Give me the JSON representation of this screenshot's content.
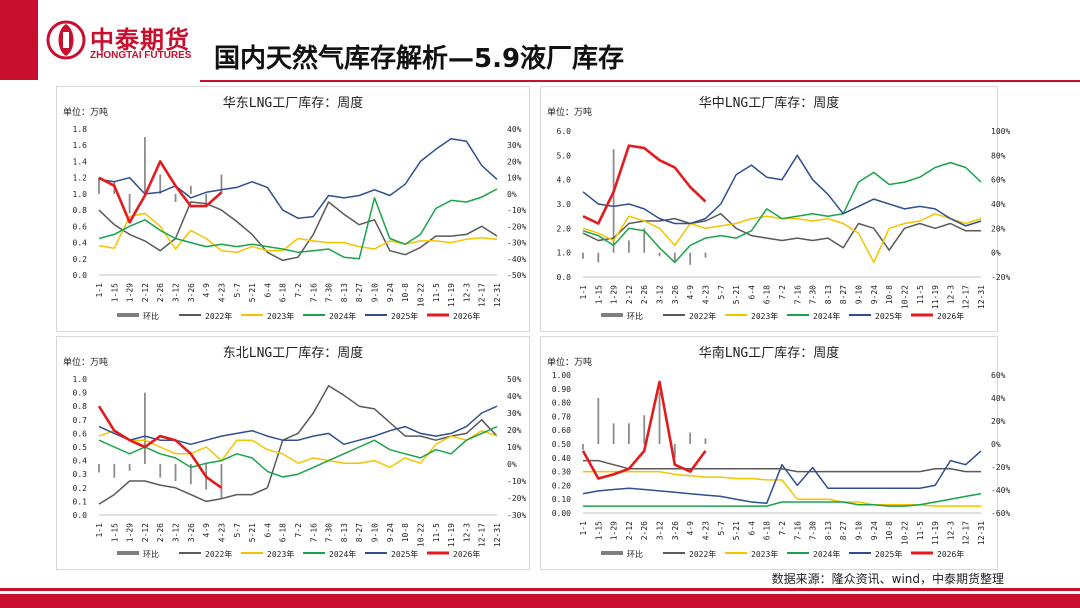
{
  "header": {
    "brand_cn": "中泰期货",
    "brand_en": "ZHONGTAI FUTURES",
    "title": "国内天然气库存解析—5.9液厂库存"
  },
  "footer": {
    "source": "数据来源：隆众资讯、wind，中泰期货整理"
  },
  "colors": {
    "brand": "#c8102e"
  },
  "x_labels": [
    "1-1",
    "1-15",
    "1-29",
    "2-12",
    "2-26",
    "3-12",
    "3-26",
    "4-9",
    "4-23",
    "5-7",
    "5-21",
    "6-4",
    "6-18",
    "7-2",
    "7-16",
    "7-30",
    "8-13",
    "8-27",
    "9-10",
    "9-24",
    "10-8",
    "10-22",
    "11-5",
    "11-19",
    "12-3",
    "12-17",
    "12-31"
  ],
  "legend": [
    {
      "name": "环比",
      "color": "#7f7f7f",
      "kind": "bar"
    },
    {
      "name": "2022年",
      "color": "#595959",
      "kind": "line"
    },
    {
      "name": "2023年",
      "color": "#f5c400",
      "kind": "line"
    },
    {
      "name": "2024年",
      "color": "#1aa34a",
      "kind": "line"
    },
    {
      "name": "2025年",
      "color": "#2f4f8f",
      "kind": "line"
    },
    {
      "name": "2026年",
      "color": "#e41a1c",
      "kind": "line"
    }
  ],
  "chart_data": [
    {
      "type": "line",
      "title": "华东LNG工厂库存：周度",
      "unit": "单位：万吨",
      "ylim": [
        0,
        1.8
      ],
      "left_ticks": [
        "1.8",
        "1.6",
        "1.4",
        "1.2",
        "1.0",
        "0.8",
        "0.6",
        "0.4",
        "0.2",
        "0.0"
      ],
      "y2lim": [
        -50,
        40
      ],
      "right_ticks": [
        "40%",
        "30%",
        "20%",
        "10%",
        "0%",
        "-10%",
        "-20%",
        "-30%",
        "-40%",
        "-50%"
      ],
      "series": [
        {
          "name": "2022年",
          "values": [
            0.8,
            0.62,
            0.5,
            0.42,
            0.3,
            0.45,
            0.9,
            0.88,
            0.8,
            0.66,
            0.5,
            0.28,
            0.18,
            0.22,
            0.5,
            0.9,
            0.75,
            0.62,
            0.68,
            0.3,
            0.25,
            0.34,
            0.48,
            0.48,
            0.5,
            0.6,
            0.48
          ]
        },
        {
          "name": "2023年",
          "values": [
            0.36,
            0.33,
            0.72,
            0.76,
            0.6,
            0.32,
            0.55,
            0.45,
            0.3,
            0.28,
            0.35,
            0.3,
            0.3,
            0.45,
            0.42,
            0.4,
            0.4,
            0.35,
            0.32,
            0.42,
            0.38,
            0.42,
            0.42,
            0.4,
            0.44,
            0.46,
            0.44
          ]
        },
        {
          "name": "2024年",
          "values": [
            0.45,
            0.5,
            0.6,
            0.68,
            0.55,
            0.45,
            0.4,
            0.35,
            0.38,
            0.35,
            0.38,
            0.35,
            0.32,
            0.28,
            0.3,
            0.32,
            0.22,
            0.2,
            0.95,
            0.45,
            0.38,
            0.5,
            0.82,
            0.92,
            0.9,
            0.96,
            1.06
          ]
        },
        {
          "name": "2025年",
          "values": [
            1.18,
            1.15,
            1.2,
            1.0,
            1.02,
            1.1,
            0.95,
            1.02,
            1.05,
            1.08,
            1.15,
            1.08,
            0.8,
            0.7,
            0.72,
            0.98,
            0.95,
            0.98,
            1.05,
            0.98,
            1.12,
            1.4,
            1.55,
            1.68,
            1.65,
            1.35,
            1.18
          ]
        },
        {
          "name": "2026年",
          "values": [
            1.2,
            1.1,
            0.65,
            0.98,
            1.4,
            1.1,
            0.85,
            0.85,
            1.02
          ]
        }
      ],
      "mom": [
        10,
        8,
        -12,
        35,
        12,
        -5,
        5,
        -8,
        12
      ]
    },
    {
      "type": "line",
      "title": "华中LNG工厂库存：周度",
      "unit": "单位：万吨",
      "ylim": [
        0,
        6.0
      ],
      "left_ticks": [
        "6.0",
        "5.0",
        "4.0",
        "3.0",
        "2.0",
        "1.0",
        "0.0"
      ],
      "y2lim": [
        -20,
        100
      ],
      "right_ticks": [
        "100%",
        "80%",
        "60%",
        "40%",
        "20%",
        "0%",
        "-20%"
      ],
      "series": [
        {
          "name": "2022年",
          "values": [
            1.8,
            1.5,
            1.6,
            2.2,
            2.3,
            2.3,
            2.4,
            2.2,
            2.3,
            2.6,
            2.0,
            1.7,
            1.6,
            1.5,
            1.6,
            1.5,
            1.6,
            1.2,
            2.2,
            2.0,
            1.1,
            2.0,
            2.2,
            2.0,
            2.2,
            1.9,
            1.9
          ]
        },
        {
          "name": "2023年",
          "values": [
            2.0,
            1.8,
            1.5,
            2.5,
            2.3,
            2.0,
            1.3,
            2.2,
            2.0,
            2.1,
            2.2,
            2.4,
            2.5,
            2.4,
            2.4,
            2.3,
            2.4,
            2.2,
            1.8,
            0.6,
            2.0,
            2.2,
            2.3,
            2.6,
            2.4,
            2.2,
            2.4
          ]
        },
        {
          "name": "2024年",
          "values": [
            1.9,
            1.7,
            1.3,
            2.0,
            1.9,
            1.2,
            0.6,
            1.3,
            1.6,
            1.7,
            1.6,
            1.9,
            2.8,
            2.4,
            2.5,
            2.6,
            2.5,
            2.6,
            3.9,
            4.3,
            3.8,
            3.9,
            4.1,
            4.5,
            4.7,
            4.5,
            3.9
          ]
        },
        {
          "name": "2025年",
          "values": [
            3.5,
            3.0,
            2.9,
            3.0,
            2.8,
            2.4,
            2.2,
            2.2,
            2.4,
            3.0,
            4.2,
            4.6,
            4.1,
            4.0,
            5.0,
            4.0,
            3.4,
            2.6,
            2.9,
            3.2,
            3.0,
            2.8,
            2.9,
            2.8,
            2.4,
            2.1,
            2.3
          ]
        },
        {
          "name": "2026年",
          "values": [
            2.5,
            2.2,
            3.5,
            5.4,
            5.3,
            4.8,
            4.5,
            3.7,
            3.1
          ]
        }
      ],
      "mom": [
        -5,
        -8,
        85,
        10,
        20,
        -3,
        -8,
        -10,
        -4
      ]
    },
    {
      "type": "line",
      "title": "东北LNG工厂库存：周度",
      "unit": "单位：万吨",
      "ylim": [
        0,
        1.0
      ],
      "left_ticks": [
        "1.0",
        "0.9",
        "0.8",
        "0.7",
        "0.6",
        "0.5",
        "0.4",
        "0.3",
        "0.2",
        "0.1",
        "0.0"
      ],
      "y2lim": [
        -30,
        50
      ],
      "right_ticks": [
        "50%",
        "40%",
        "30%",
        "20%",
        "10%",
        "0%",
        "-10%",
        "-20%",
        "-30%"
      ],
      "series": [
        {
          "name": "2022年",
          "values": [
            0.08,
            0.15,
            0.25,
            0.25,
            0.22,
            0.2,
            0.15,
            0.1,
            0.12,
            0.15,
            0.15,
            0.2,
            0.55,
            0.6,
            0.75,
            0.95,
            0.88,
            0.8,
            0.78,
            0.68,
            0.58,
            0.58,
            0.55,
            0.58,
            0.6,
            0.7,
            0.58
          ]
        },
        {
          "name": "2023年",
          "values": [
            0.58,
            0.62,
            0.55,
            0.55,
            0.5,
            0.45,
            0.45,
            0.5,
            0.4,
            0.55,
            0.55,
            0.48,
            0.45,
            0.38,
            0.42,
            0.4,
            0.38,
            0.38,
            0.4,
            0.35,
            0.42,
            0.38,
            0.52,
            0.58,
            0.55,
            0.62,
            0.58
          ]
        },
        {
          "name": "2024年",
          "values": [
            0.55,
            0.5,
            0.45,
            0.5,
            0.45,
            0.42,
            0.35,
            0.38,
            0.4,
            0.45,
            0.42,
            0.32,
            0.28,
            0.3,
            0.35,
            0.4,
            0.45,
            0.5,
            0.55,
            0.48,
            0.45,
            0.42,
            0.48,
            0.45,
            0.55,
            0.6,
            0.65
          ]
        },
        {
          "name": "2025年",
          "values": [
            0.65,
            0.6,
            0.55,
            0.58,
            0.55,
            0.55,
            0.52,
            0.55,
            0.58,
            0.6,
            0.62,
            0.58,
            0.55,
            0.55,
            0.58,
            0.6,
            0.52,
            0.55,
            0.58,
            0.62,
            0.65,
            0.6,
            0.58,
            0.6,
            0.65,
            0.75,
            0.8
          ]
        },
        {
          "name": "2026年",
          "values": [
            0.8,
            0.62,
            0.55,
            0.5,
            0.58,
            0.55,
            0.45,
            0.28,
            0.2
          ]
        }
      ],
      "mom": [
        -5,
        -8,
        -4,
        42,
        -8,
        -10,
        -12,
        -15,
        -20
      ]
    },
    {
      "type": "line",
      "title": "华南LNG工厂库存：周度",
      "unit": "单位：万吨",
      "ylim": [
        0,
        1.0
      ],
      "left_ticks": [
        "1.00",
        "0.90",
        "0.80",
        "0.70",
        "0.60",
        "0.50",
        "0.40",
        "0.30",
        "0.20",
        "0.10",
        "0.00"
      ],
      "y2lim": [
        -60,
        60
      ],
      "right_ticks": [
        "60%",
        "40%",
        "20%",
        "0%",
        "-20%",
        "-40%",
        "-60%"
      ],
      "series": [
        {
          "name": "2022年",
          "values": [
            0.38,
            0.38,
            0.35,
            0.32,
            0.32,
            0.32,
            0.32,
            0.32,
            0.32,
            0.32,
            0.32,
            0.32,
            0.32,
            0.32,
            0.3,
            0.3,
            0.3,
            0.3,
            0.3,
            0.3,
            0.3,
            0.3,
            0.3,
            0.32,
            0.32,
            0.3,
            0.3
          ]
        },
        {
          "name": "2023年",
          "values": [
            0.3,
            0.3,
            0.3,
            0.3,
            0.3,
            0.3,
            0.28,
            0.27,
            0.26,
            0.26,
            0.25,
            0.25,
            0.24,
            0.24,
            0.1,
            0.1,
            0.1,
            0.08,
            0.08,
            0.06,
            0.06,
            0.06,
            0.06,
            0.05,
            0.05,
            0.05,
            0.05
          ]
        },
        {
          "name": "2024年",
          "values": [
            0.05,
            0.05,
            0.05,
            0.05,
            0.05,
            0.05,
            0.05,
            0.05,
            0.05,
            0.05,
            0.05,
            0.05,
            0.05,
            0.08,
            0.08,
            0.08,
            0.08,
            0.08,
            0.06,
            0.06,
            0.05,
            0.05,
            0.06,
            0.08,
            0.1,
            0.12,
            0.14
          ]
        },
        {
          "name": "2025年",
          "values": [
            0.14,
            0.16,
            0.17,
            0.18,
            0.17,
            0.16,
            0.15,
            0.14,
            0.13,
            0.12,
            0.1,
            0.08,
            0.07,
            0.35,
            0.2,
            0.33,
            0.18,
            0.18,
            0.18,
            0.18,
            0.18,
            0.18,
            0.18,
            0.2,
            0.38,
            0.35,
            0.45
          ]
        },
        {
          "name": "2026年",
          "values": [
            0.45,
            0.25,
            0.28,
            0.32,
            0.45,
            0.95,
            0.35,
            0.3,
            0.45
          ]
        }
      ],
      "mom": [
        -5,
        40,
        18,
        18,
        25,
        45,
        -12,
        10,
        5
      ]
    }
  ]
}
